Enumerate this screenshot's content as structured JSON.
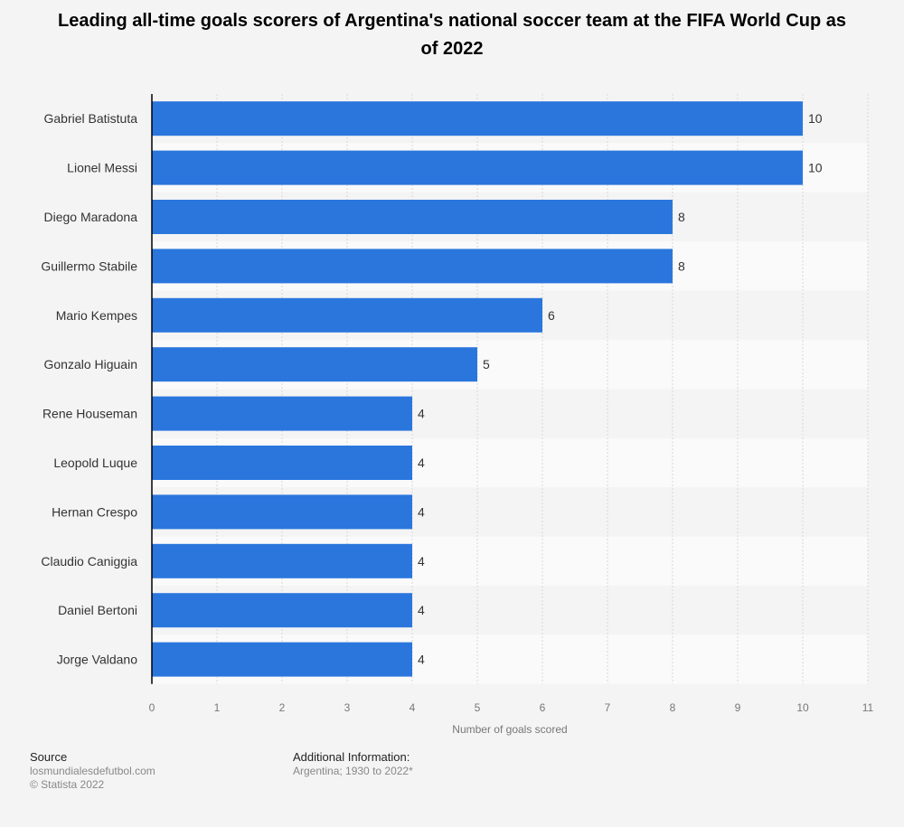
{
  "title": "Leading all-time goals scorers of Argentina's national soccer team at the FIFA World Cup as of 2022",
  "chart_data": {
    "type": "bar",
    "orientation": "horizontal",
    "categories": [
      "Gabriel Batistuta",
      "Lionel Messi",
      "Diego Maradona",
      "Guillermo Stabile",
      "Mario Kempes",
      "Gonzalo Higuain",
      "Rene Houseman",
      "Leopold Luque",
      "Hernan Crespo",
      "Claudio Caniggia",
      "Daniel Bertoni",
      "Jorge Valdano"
    ],
    "values": [
      10,
      10,
      8,
      8,
      6,
      5,
      4,
      4,
      4,
      4,
      4,
      4
    ],
    "xlabel": "Number of goals scored",
    "ylabel": "",
    "xlim": [
      0,
      11
    ],
    "ticks": [
      0,
      1,
      2,
      3,
      4,
      5,
      6,
      7,
      8,
      9,
      10,
      11
    ],
    "grid": true,
    "bar_color": "#2a76dd"
  },
  "footer": {
    "source_label": "Source",
    "source_line1": "losmundialesdefutbol.com",
    "source_line2": "© Statista 2022",
    "info_label": "Additional Information:",
    "info_text": "Argentina; 1930 to 2022*"
  }
}
